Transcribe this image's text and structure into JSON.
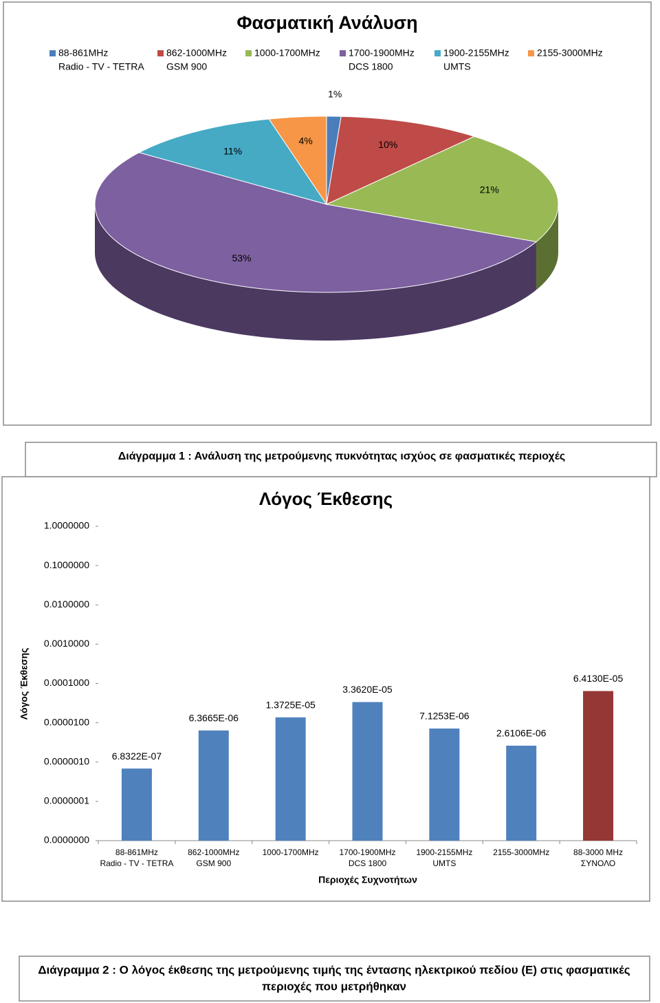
{
  "chart_data": [
    {
      "type": "pie",
      "title": "Φασματική Ανάλυση",
      "categories": [
        [
          "88-861MHz",
          "Radio - TV - TETRA"
        ],
        [
          "862-1000MHz",
          "GSM 900"
        ],
        [
          "1000-1700MHz"
        ],
        [
          "1700-1900MHz",
          "DCS 1800"
        ],
        [
          "1900-2155MHz",
          "UMTS"
        ],
        [
          "2155-3000MHz"
        ]
      ],
      "values": [
        1,
        10,
        21,
        53,
        11,
        4
      ],
      "value_labels": [
        "1%",
        "10%",
        "21%",
        "53%",
        "11%",
        "4%"
      ],
      "colors": [
        "#4a7ebb",
        "#be4b48",
        "#98b954",
        "#7d60a0",
        "#46aac5",
        "#f79646"
      ]
    },
    {
      "type": "bar",
      "title": "Λόγος Έκθεσης",
      "y_label": "Λόγος Έκθεσης",
      "x_label": "Περιοχές Συχνοτήτων",
      "categories": [
        [
          "88-861MHz",
          "Radio - TV - TETRA"
        ],
        [
          "862-1000MHz",
          "GSM 900"
        ],
        [
          "1000-1700MHz"
        ],
        [
          "1700-1900MHz",
          "DCS 1800"
        ],
        [
          "1900-2155MHz",
          "UMTS"
        ],
        [
          "2155-3000MHz"
        ],
        [
          "88-3000 MHz",
          "ΣΥΝΟΛΟ"
        ]
      ],
      "values": [
        6.8322e-07,
        6.3665e-06,
        1.3725e-05,
        3.362e-05,
        7.1253e-06,
        2.6106e-06,
        6.413e-05
      ],
      "value_labels": [
        "6.8322E-07",
        "6.3665E-06",
        "1.3725E-05",
        "3.3620E-05",
        "7.1253E-06",
        "2.6106E-06",
        "6.4130E-05"
      ],
      "colors": [
        "#4f81bd",
        "#4f81bd",
        "#4f81bd",
        "#4f81bd",
        "#4f81bd",
        "#4f81bd",
        "#953735"
      ],
      "log_scale": true,
      "ylim": [
        1e-08,
        1
      ],
      "yticks": [
        {
          "value": 1,
          "label": "1.0000000"
        },
        {
          "value": 0.1,
          "label": "0.1000000"
        },
        {
          "value": 0.01,
          "label": "0.0100000"
        },
        {
          "value": 0.001,
          "label": "0.0010000"
        },
        {
          "value": 0.0001,
          "label": "0.0001000"
        },
        {
          "value": 1e-05,
          "label": "0.0000100"
        },
        {
          "value": 1e-06,
          "label": "0.0000010"
        },
        {
          "value": 1e-07,
          "label": "0.0000001"
        },
        {
          "value": 1e-08,
          "label": "0.0000000"
        }
      ]
    }
  ],
  "captions": [
    [
      "Διάγραμμα 1 : Ανάλυση της μετρούμενης πυκνότητας ισχύος σε φασματικές περιοχές"
    ],
    [
      "Διάγραμμα 2 : Ο λόγος έκθεσης της μετρούμενης τιμής της έντασης ηλεκτρικού πεδίου (Ε) στις φασματικές",
      "περιοχές που μετρήθηκαν"
    ]
  ]
}
